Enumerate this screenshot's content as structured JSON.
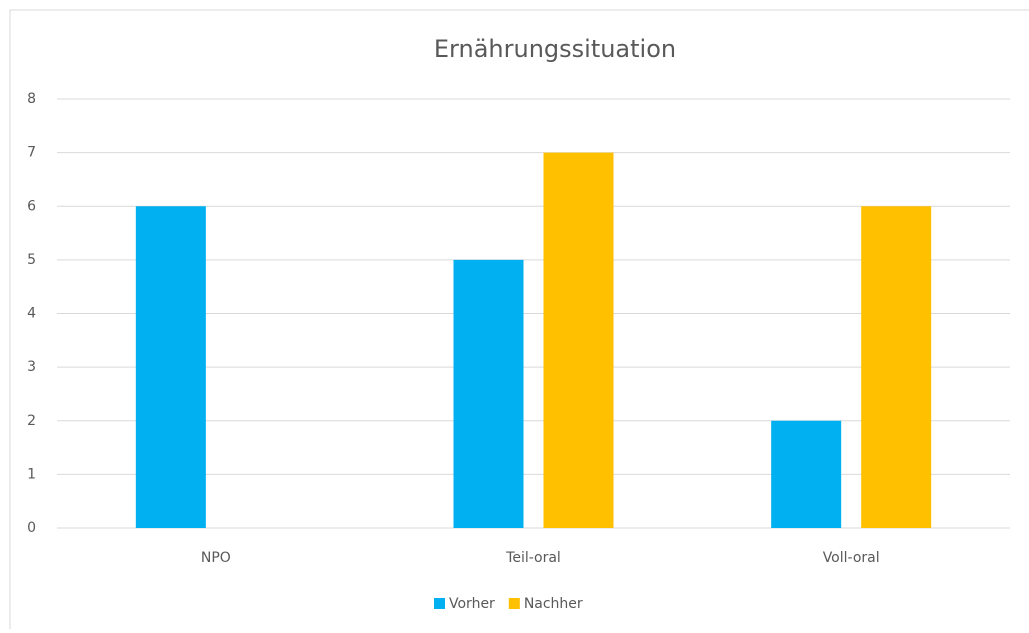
{
  "chart_data": {
    "type": "bar",
    "title": "Ernährungssituation",
    "categories": [
      "NPO",
      "Teil-oral",
      "Voll-oral"
    ],
    "series": [
      {
        "name": "Vorher",
        "color": "#00b0f0",
        "values": [
          6,
          5,
          2
        ]
      },
      {
        "name": "Nachher",
        "color": "#ffc000",
        "values": [
          0,
          7,
          6
        ]
      }
    ],
    "ylim": [
      0,
      8
    ],
    "yticks": [
      0,
      1,
      2,
      3,
      4,
      5,
      6,
      7,
      8
    ],
    "grid": true,
    "legend": "bottom"
  }
}
